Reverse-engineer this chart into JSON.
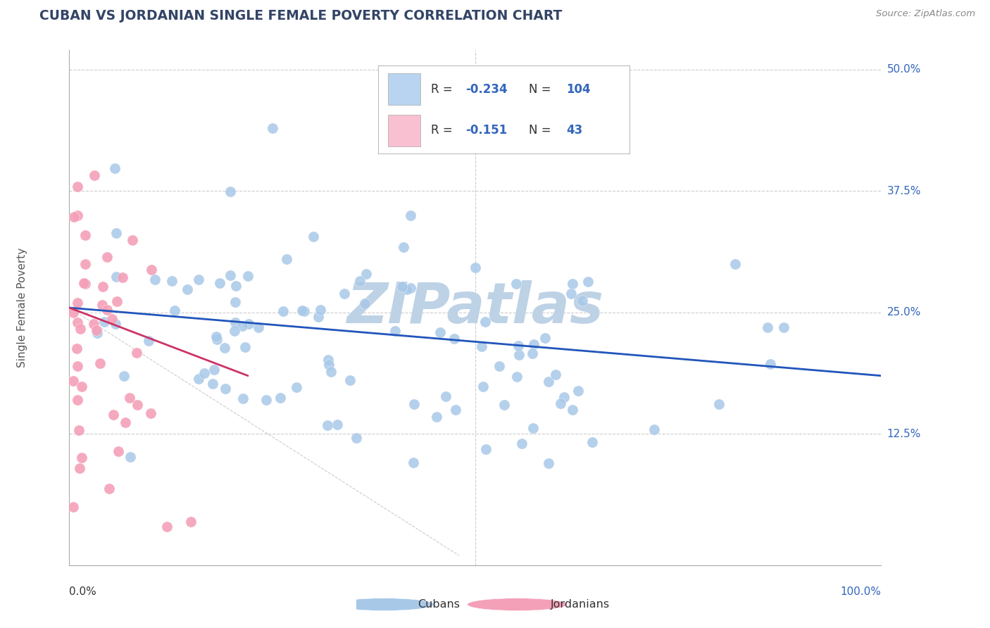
{
  "title": "CUBAN VS JORDANIAN SINGLE FEMALE POVERTY CORRELATION CHART",
  "source_text": "Source: ZipAtlas.com",
  "ylabel": "Single Female Poverty",
  "xlim": [
    0.0,
    1.0
  ],
  "ylim": [
    -0.01,
    0.52
  ],
  "cuban_color": "#a8c8e8",
  "jordanian_color": "#f4a0b8",
  "cuban_line_color": "#2255bb",
  "jordanian_line_color": "#cc3366",
  "legend_box_blue": "#b8d4f0",
  "legend_box_pink": "#f8c0d0",
  "watermark": "ZIPatlas",
  "watermark_color_r": 190,
  "watermark_color_g": 210,
  "watermark_color_b": 230,
  "background_color": "#ffffff",
  "grid_color": "#cccccc",
  "title_color": "#334466",
  "source_color": "#888888",
  "ytick_color": "#3366bb",
  "cubans_R": -0.234,
  "cubans_N": 104,
  "jordanians_R": -0.151,
  "jordanians_N": 43,
  "cuban_line_start_x": 0.0,
  "cuban_line_start_y": 0.255,
  "cuban_line_end_x": 1.0,
  "cuban_line_end_y": 0.185,
  "jordan_line_start_x": 0.0,
  "jordan_line_start_y": 0.255,
  "jordan_line_end_x": 0.22,
  "jordan_line_end_y": 0.185
}
